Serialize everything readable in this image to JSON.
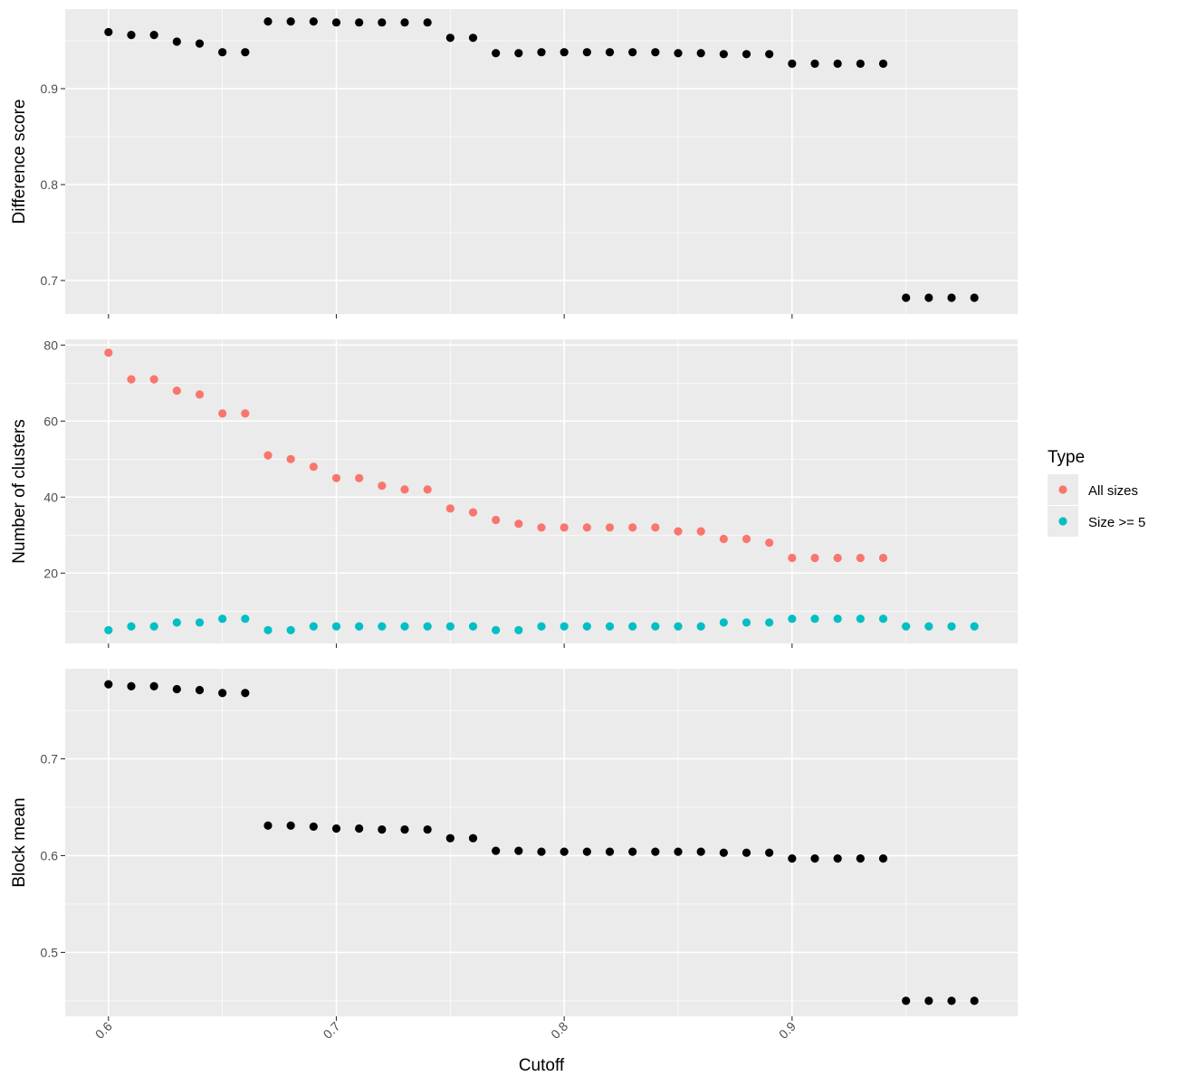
{
  "chart_data": [
    {
      "type": "scatter",
      "panel": "difference-score",
      "ylabel": "Difference score",
      "ylim": [
        0.665,
        0.983
      ],
      "y_major_ticks": [
        0.7,
        0.8,
        0.9
      ],
      "y_tick_labels": [
        "0.7",
        "0.8",
        "0.9"
      ],
      "point_color": "#000000",
      "x": [
        0.6,
        0.61,
        0.62,
        0.63,
        0.64,
        0.65,
        0.66,
        0.67,
        0.68,
        0.69,
        0.7,
        0.71,
        0.72,
        0.73,
        0.74,
        0.75,
        0.76,
        0.77,
        0.78,
        0.79,
        0.8,
        0.81,
        0.82,
        0.83,
        0.84,
        0.85,
        0.86,
        0.87,
        0.88,
        0.89,
        0.9,
        0.91,
        0.92,
        0.93,
        0.94,
        0.95,
        0.96,
        0.97,
        0.98
      ],
      "y": [
        0.959,
        0.956,
        0.956,
        0.949,
        0.947,
        0.938,
        0.938,
        0.97,
        0.97,
        0.97,
        0.969,
        0.969,
        0.969,
        0.969,
        0.969,
        0.953,
        0.953,
        0.937,
        0.937,
        0.938,
        0.938,
        0.938,
        0.938,
        0.938,
        0.938,
        0.937,
        0.937,
        0.936,
        0.936,
        0.936,
        0.926,
        0.926,
        0.926,
        0.926,
        0.926,
        0.682,
        0.682,
        0.682,
        0.682
      ]
    },
    {
      "type": "scatter",
      "panel": "number-of-clusters",
      "ylabel": "Number of clusters",
      "ylim": [
        1.5,
        81.5
      ],
      "y_major_ticks": [
        20,
        40,
        60,
        80
      ],
      "y_tick_labels": [
        "20",
        "40",
        "60",
        "80"
      ],
      "series": [
        {
          "name": "All sizes",
          "color": "#F8766D",
          "x": [
            0.6,
            0.61,
            0.62,
            0.63,
            0.64,
            0.65,
            0.66,
            0.67,
            0.68,
            0.69,
            0.7,
            0.71,
            0.72,
            0.73,
            0.74,
            0.75,
            0.76,
            0.77,
            0.78,
            0.79,
            0.8,
            0.81,
            0.82,
            0.83,
            0.84,
            0.85,
            0.86,
            0.87,
            0.88,
            0.89,
            0.9,
            0.91,
            0.92,
            0.93,
            0.94
          ],
          "y": [
            78,
            71,
            71,
            68,
            67,
            62,
            62,
            51,
            50,
            48,
            45,
            45,
            43,
            42,
            42,
            37,
            36,
            34,
            33,
            32,
            32,
            32,
            32,
            32,
            32,
            31,
            31,
            29,
            29,
            28,
            24,
            24,
            24,
            24,
            24
          ]
        },
        {
          "name": "Size >= 5",
          "color": "#00BFC4",
          "x": [
            0.6,
            0.61,
            0.62,
            0.63,
            0.64,
            0.65,
            0.66,
            0.67,
            0.68,
            0.69,
            0.7,
            0.71,
            0.72,
            0.73,
            0.74,
            0.75,
            0.76,
            0.77,
            0.78,
            0.79,
            0.8,
            0.81,
            0.82,
            0.83,
            0.84,
            0.85,
            0.86,
            0.87,
            0.88,
            0.89,
            0.9,
            0.91,
            0.92,
            0.93,
            0.94,
            0.95,
            0.96,
            0.97,
            0.98
          ],
          "y": [
            5,
            6,
            6,
            7,
            7,
            8,
            8,
            5,
            5,
            6,
            6,
            6,
            6,
            6,
            6,
            6,
            6,
            5,
            5,
            6,
            6,
            6,
            6,
            6,
            6,
            6,
            6,
            7,
            7,
            7,
            8,
            8,
            8,
            8,
            8,
            6,
            6,
            6,
            6
          ]
        }
      ]
    },
    {
      "type": "scatter",
      "panel": "block-mean",
      "ylabel": "Block mean",
      "xlabel": "Cutoff",
      "ylim": [
        0.434,
        0.793
      ],
      "y_major_ticks": [
        0.5,
        0.6,
        0.7
      ],
      "y_tick_labels": [
        "0.5",
        "0.6",
        "0.7"
      ],
      "point_color": "#000000",
      "x": [
        0.6,
        0.61,
        0.62,
        0.63,
        0.64,
        0.65,
        0.66,
        0.67,
        0.68,
        0.69,
        0.7,
        0.71,
        0.72,
        0.73,
        0.74,
        0.75,
        0.76,
        0.77,
        0.78,
        0.79,
        0.8,
        0.81,
        0.82,
        0.83,
        0.84,
        0.85,
        0.86,
        0.87,
        0.88,
        0.89,
        0.9,
        0.91,
        0.92,
        0.93,
        0.94,
        0.95,
        0.96,
        0.97,
        0.98
      ],
      "y": [
        0.777,
        0.775,
        0.775,
        0.772,
        0.771,
        0.768,
        0.768,
        0.631,
        0.631,
        0.63,
        0.628,
        0.628,
        0.627,
        0.627,
        0.627,
        0.618,
        0.618,
        0.605,
        0.605,
        0.604,
        0.604,
        0.604,
        0.604,
        0.604,
        0.604,
        0.604,
        0.604,
        0.603,
        0.603,
        0.603,
        0.597,
        0.597,
        0.597,
        0.597,
        0.597,
        0.45,
        0.45,
        0.45,
        0.45
      ]
    }
  ],
  "x_axis": {
    "title": "Cutoff",
    "xlim": [
      0.581,
      0.999
    ],
    "major_ticks": [
      0.6,
      0.7,
      0.8,
      0.9
    ],
    "tick_labels": [
      "0.6",
      "0.7",
      "0.8",
      "0.9"
    ]
  },
  "legend": {
    "title": "Type",
    "position": "right",
    "items": [
      {
        "label": "All sizes",
        "color": "#F8766D"
      },
      {
        "label": "Size >= 5",
        "color": "#00BFC4"
      }
    ]
  }
}
